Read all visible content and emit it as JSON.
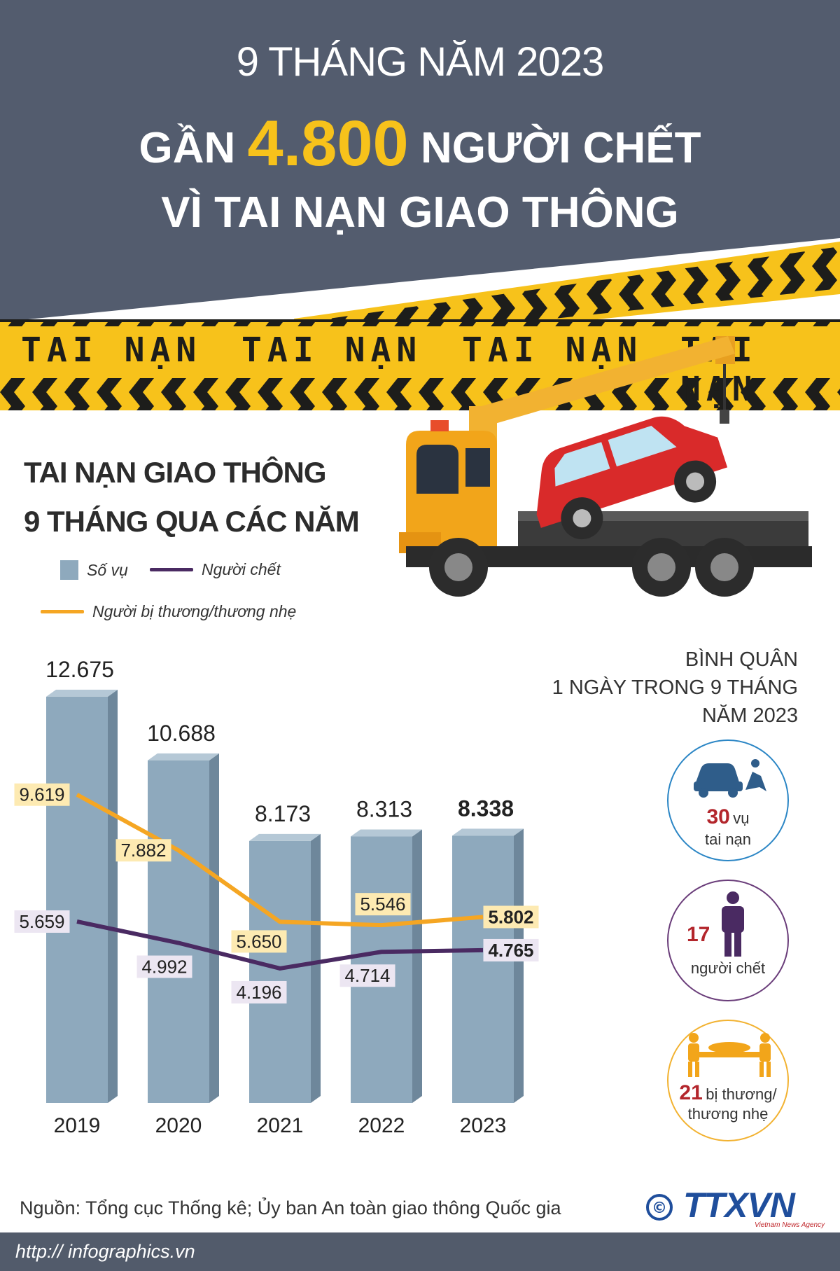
{
  "header": {
    "period": "9 THÁNG NĂM 2023",
    "headline_prefix": "GẦN",
    "headline_number": "4.800",
    "headline_suffix": "NGƯỜI CHẾT",
    "headline_line2": "VÌ TAI NẠN GIAO THÔNG"
  },
  "tape": {
    "words": [
      "TAI NẠN",
      "TAI NẠN",
      "TAI NẠN",
      "TAI NẠN"
    ]
  },
  "chart_title": {
    "line1": "TAI NẠN GIAO THÔNG",
    "line2": "9 THÁNG QUA CÁC NĂM"
  },
  "legend": {
    "cases": "Số vụ",
    "deaths": "Người chết",
    "injured": "Người bị thương/thương nhẹ"
  },
  "colors": {
    "header_bg": "#535c6e",
    "accent_yellow": "#f7c21b",
    "bar": "#8ea9bd",
    "deaths_line": "#4a2a62",
    "injured_line": "#f5a623",
    "injured_label_bg": "#fdeab2",
    "deaths_label_bg": "#ece6f2"
  },
  "chart_data": {
    "type": "bar",
    "categories": [
      "2019",
      "2020",
      "2021",
      "2022",
      "2023"
    ],
    "series": [
      {
        "name": "Số vụ",
        "type": "bar",
        "values": [
          12675,
          10688,
          8173,
          8313,
          8338
        ],
        "labels": [
          "12.675",
          "10.688",
          "8.173",
          "8.313",
          "8.338"
        ]
      },
      {
        "name": "Người bị thương/thương nhẹ",
        "type": "line",
        "values": [
          9619,
          7882,
          5650,
          5546,
          5802
        ],
        "labels": [
          "9.619",
          "7.882",
          "5.650",
          "5.546",
          "5.802"
        ]
      },
      {
        "name": "Người chết",
        "type": "line",
        "values": [
          5659,
          4992,
          4196,
          4714,
          4765
        ],
        "labels": [
          "5.659",
          "4.992",
          "4.196",
          "4.714",
          "4.765"
        ]
      }
    ],
    "ylim": [
      0,
      13000
    ],
    "grid": false,
    "legend": "top-left"
  },
  "daily_average": {
    "heading_line1": "BÌNH QUÂN",
    "heading_line2": "1 NGÀY TRONG 9 THÁNG",
    "heading_line3": "NĂM 2023",
    "items": [
      {
        "number": "30",
        "unit": "vụ",
        "label": "tai nạn",
        "icon": "car-crash-icon"
      },
      {
        "number": "17",
        "label": "người chết",
        "icon": "person-icon"
      },
      {
        "number": "21",
        "unit": "bị thương/",
        "label": "thương nhẹ",
        "icon": "stretcher-icon"
      }
    ]
  },
  "source": "Nguồn: Tổng cục Thống kê; Ủy ban An toàn giao thông Quốc gia",
  "footer": {
    "url": "http:// infographics.vn",
    "logo_text": "TTXVN",
    "logo_sub": "Vietnam News Agency",
    "copyright": "©"
  }
}
